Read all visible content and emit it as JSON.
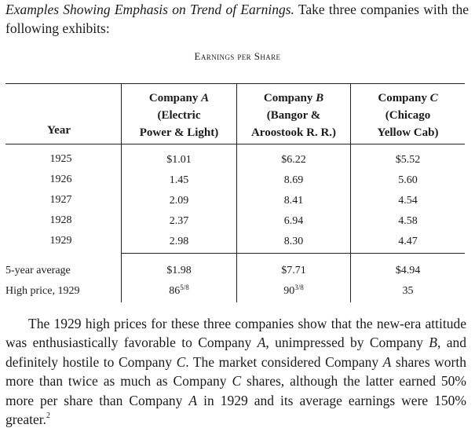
{
  "intro": {
    "heading": "Examples Showing Emphasis on Trend of Earnings.",
    "text": "Take three companies with the following exhibits:"
  },
  "table": {
    "title": "Earnings per Share",
    "year_header": "Year",
    "columns": [
      {
        "name": "Company",
        "letter": "A",
        "desc_line1": "(Electric",
        "desc_line2": "Power & Light)"
      },
      {
        "name": "Company",
        "letter": "B",
        "desc_line1": "(Bangor &",
        "desc_line2": "Aroostook R. R.)"
      },
      {
        "name": "Company",
        "letter": "C",
        "desc_line1": "(Chicago",
        "desc_line2": "Yellow Cab)"
      }
    ],
    "rows": [
      {
        "year": "1925",
        "a": "$1.01",
        "b": "$6.22",
        "c": "$5.52"
      },
      {
        "year": "1926",
        "a": "1.45",
        "b": "8.69",
        "c": "5.60"
      },
      {
        "year": "1927",
        "a": "2.09",
        "b": "8.41",
        "c": "4.54"
      },
      {
        "year": "1928",
        "a": "2.37",
        "b": "6.94",
        "c": "4.58"
      },
      {
        "year": "1929",
        "a": "2.98",
        "b": "8.30",
        "c": "4.47"
      }
    ],
    "summary": [
      {
        "label": "5-year average",
        "a": "$1.98",
        "b": "$7.71",
        "c": "$4.94"
      },
      {
        "label": "High price, 1929",
        "a_whole": "86",
        "a_frac": "5/8",
        "b_whole": "90",
        "b_frac": "3/8",
        "c": "35"
      }
    ]
  },
  "body": {
    "p1": "The 1929 high prices for these three companies show that the new-era attitude was enthusiastically favorable to Company ",
    "a1": "A",
    "p2": ", unimpressed by Company ",
    "b1": "B",
    "p3": ", and definitely hostile to Company ",
    "c1": "C",
    "p4": ". The market considered Company ",
    "a2": "A",
    "p5": " shares worth more than twice as much as Company ",
    "c2": "C",
    "p6": " shares, although the latter earned 50% more per share than Company ",
    "a3": "A",
    "p7": " in 1929 and its average earnings were 150% greater.",
    "footnote": "2"
  }
}
